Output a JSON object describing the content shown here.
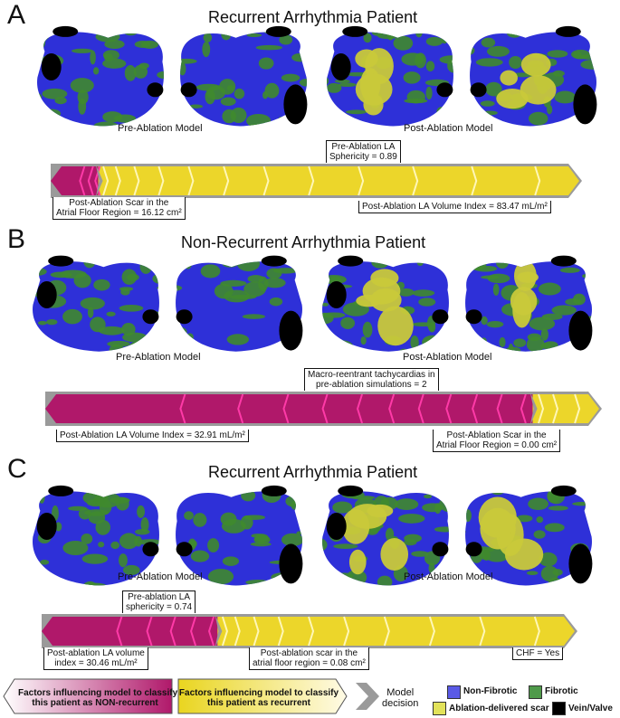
{
  "panels": [
    {
      "letter": "A",
      "title": "Recurrent Arrhythmia Patient",
      "pre_label": "Pre-Ablation Model",
      "post_label": "Post-Ablation Model",
      "bar": {
        "nonrec_fraction": 0.09,
        "pink_chevrons": 3,
        "yellow_chevrons": 12
      },
      "callouts": [
        {
          "text": "Pre-Ablation LA\nSphericity = 0.89"
        },
        {
          "text": "Post-Ablation Scar in the\nAtrial Floor Region = 16.12 cm²"
        },
        {
          "text": "Post-Ablation LA Volume Index = 83.47 mL/m²"
        }
      ]
    },
    {
      "letter": "B",
      "title": "Non-Recurrent Arrhythmia Patient",
      "pre_label": "Pre-Ablation Model",
      "post_label": "Post-Ablation Model",
      "bar": {
        "nonrec_fraction": 0.88,
        "pink_chevrons": 11,
        "yellow_chevrons": 3
      },
      "callouts": [
        {
          "text": "Macro-reentrant tachycardias in\npre-ablation simulations = 2"
        },
        {
          "text": "Post-Ablation LA Volume Index = 32.91 mL/m²"
        },
        {
          "text": "Post-Ablation Scar in the\nAtrial Floor Region = 0.00 cm²"
        }
      ]
    },
    {
      "letter": "C",
      "title": "Recurrent Arrhythmia Patient",
      "pre_label": "Pre-Ablation Model",
      "post_label": "Post-Ablation Model",
      "bar": {
        "nonrec_fraction": 0.33,
        "pink_chevrons": 5,
        "yellow_chevrons": 10
      },
      "callouts": [
        {
          "text": "Pre-ablation LA\nsphericity = 0.74"
        },
        {
          "text": "Post-ablation LA volume\nindex = 30.46 mL/m²"
        },
        {
          "text": "Post-ablation scar in the\natrial floor region = 0.08 cm²"
        },
        {
          "text": "CHF = Yes"
        }
      ]
    }
  ],
  "legend": {
    "nonrecurrent": "Factors influencing model to classify\nthis patient as NON-recurrent",
    "recurrent": "Factors influencing model to classify\nthis patient as recurrent",
    "decision": "Model\ndecision",
    "tissue": [
      {
        "label": "Non-Fibrotic",
        "color": "#5a5ae6"
      },
      {
        "label": "Fibrotic",
        "color": "#4f9a4a"
      },
      {
        "label": "Ablation-delivered scar",
        "color": "#e2e25a"
      },
      {
        "label": "Vein/Valve",
        "color": "#000000"
      }
    ]
  },
  "colors": {
    "nonrec": "#b0186a",
    "nonrec_edge": "#ff3aa8",
    "rec": "#ecd62a",
    "rec_edge": "#fff7b8",
    "frame": "#9a9a9a",
    "tissue_blue": "#2e30d8",
    "tissue_green": "#3f8a2e",
    "scar": "#c9c93a"
  }
}
